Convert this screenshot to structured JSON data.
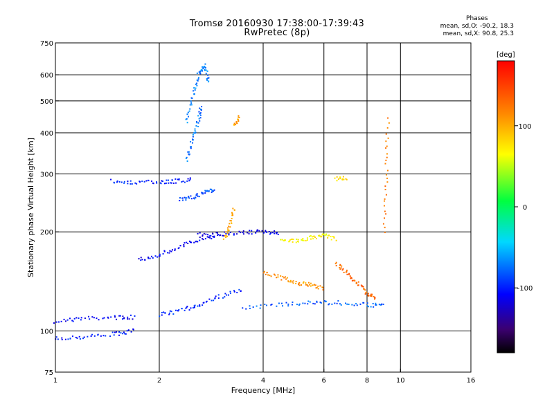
{
  "chart_data": {
    "type": "scatter",
    "title": "Tromsø 20160930 17:38:00-17:39:43",
    "subtitle": "RwPretec (8p)",
    "xlabel": "Frequency [MHz]",
    "ylabel": "Stationary phase Virtual Height [km]",
    "x_scale": "log",
    "y_scale": "log",
    "xlim": [
      1,
      16
    ],
    "ylim": [
      75,
      750
    ],
    "x_ticks": [
      1,
      2,
      4,
      6,
      8,
      10,
      16
    ],
    "y_ticks": [
      75,
      100,
      200,
      300,
      400,
      500,
      600,
      750
    ],
    "x_gridlines": [
      1,
      2,
      4,
      6,
      8,
      10,
      16
    ],
    "y_gridlines": [
      100,
      200,
      300,
      400,
      500,
      600
    ],
    "colorbar": {
      "label": "[deg]",
      "range": [
        -180,
        180
      ],
      "ticks": [
        100,
        0,
        -100
      ]
    },
    "phase_stats": {
      "header": "Phases",
      "line1": "mean, sd,O: -90.2, 18.3",
      "line2": "mean, sd,X:  90.8, 25.3"
    },
    "traces": [
      {
        "x": [
          1.0,
          1.2,
          1.5,
          1.7
        ],
        "y": [
          107,
          109,
          110,
          110
        ],
        "phase": -110
      },
      {
        "x": [
          1.0,
          1.2,
          1.5,
          1.7
        ],
        "y": [
          95,
          96,
          98,
          100
        ],
        "phase": -100
      },
      {
        "x": [
          1.45,
          1.7,
          2.0,
          2.2,
          2.5
        ],
        "y": [
          285,
          283,
          282,
          285,
          288
        ],
        "phase": -100
      },
      {
        "x": [
          1.75,
          2.0,
          2.3,
          2.6,
          3.0
        ],
        "y": [
          165,
          170,
          180,
          190,
          196
        ],
        "phase": -110
      },
      {
        "x": [
          2.6,
          3.0,
          3.5,
          4.0,
          4.5
        ],
        "y": [
          196,
          197,
          199,
          200,
          199
        ],
        "phase": -115
      },
      {
        "x": [
          2.0,
          2.3,
          2.6,
          3.0,
          3.5
        ],
        "y": [
          112,
          115,
          120,
          127,
          133
        ],
        "phase": -95
      },
      {
        "x": [
          3.5,
          4.5,
          5.5,
          6.5,
          8.0,
          9.0
        ],
        "y": [
          118,
          120,
          122,
          122,
          120,
          120
        ],
        "phase": -80
      },
      {
        "x": [
          2.4,
          2.5,
          2.6,
          2.7,
          2.8
        ],
        "y": [
          430,
          520,
          600,
          640,
          560
        ],
        "phase": -70
      },
      {
        "x": [
          2.4,
          2.5,
          2.6,
          2.65
        ],
        "y": [
          330,
          380,
          440,
          480
        ],
        "phase": -75
      },
      {
        "x": [
          2.3,
          2.5,
          2.7,
          2.9
        ],
        "y": [
          250,
          255,
          262,
          270
        ],
        "phase": -85
      },
      {
        "x": [
          3.1,
          3.2,
          3.3
        ],
        "y": [
          190,
          210,
          240
        ],
        "phase": 100
      },
      {
        "x": [
          3.3,
          3.4
        ],
        "y": [
          420,
          450
        ],
        "phase": 105
      },
      {
        "x": [
          4.0,
          4.5,
          5.0,
          5.5,
          6.0
        ],
        "y": [
          150,
          145,
          140,
          138,
          135
        ],
        "phase": 110
      },
      {
        "x": [
          4.5,
          5.0,
          5.5,
          6.0,
          6.5
        ],
        "y": [
          190,
          188,
          192,
          195,
          190
        ],
        "phase": 70
      },
      {
        "x": [
          6.5,
          7.0,
          7.5,
          8.0,
          8.5
        ],
        "y": [
          160,
          150,
          140,
          130,
          125
        ],
        "phase": 130
      },
      {
        "x": [
          9.0,
          9.1,
          9.2
        ],
        "y": [
          200,
          300,
          450
        ],
        "phase": 120
      },
      {
        "x": [
          6.5,
          7.0
        ],
        "y": [
          290,
          292
        ],
        "phase": 80
      }
    ]
  }
}
